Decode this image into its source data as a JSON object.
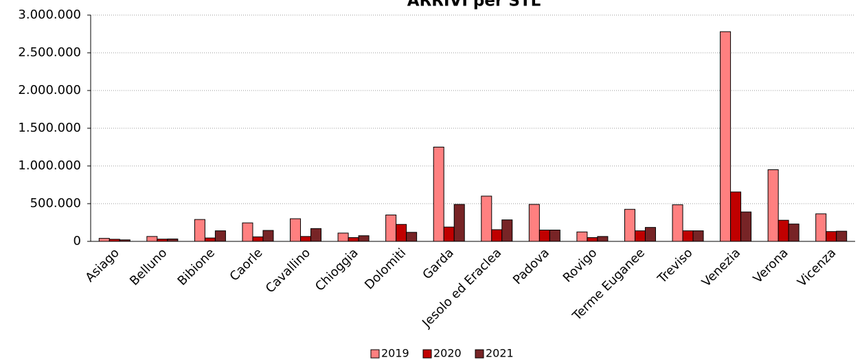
{
  "chart_data": {
    "type": "bar",
    "title": "ARRIVI per STL",
    "categories": [
      "Asiago",
      "Belluno",
      "Bibione",
      "Caorle",
      "Cavallino",
      "Chioggia",
      "Dolomiti",
      "Garda",
      "Jesolo ed Eraclea",
      "Padova",
      "Rovigo",
      "Terme Euganee",
      "Treviso",
      "Venezia",
      "Verona",
      "Vicenza"
    ],
    "series": [
      {
        "name": "2019",
        "color": "#ff8080",
        "values": [
          40000,
          65000,
          290000,
          245000,
          300000,
          110000,
          350000,
          1250000,
          600000,
          490000,
          125000,
          425000,
          485000,
          2780000,
          950000,
          365000
        ]
      },
      {
        "name": "2020",
        "color": "#c00000",
        "values": [
          28000,
          30000,
          45000,
          60000,
          65000,
          50000,
          225000,
          190000,
          155000,
          150000,
          50000,
          140000,
          140000,
          655000,
          280000,
          130000
        ]
      },
      {
        "name": "2021",
        "color": "#772426",
        "values": [
          20000,
          32000,
          140000,
          145000,
          170000,
          75000,
          120000,
          490000,
          285000,
          150000,
          65000,
          185000,
          140000,
          390000,
          230000,
          135000
        ]
      }
    ],
    "ylim": [
      0,
      3000000
    ],
    "yticks": [
      0,
      {
        "value": 500000,
        "label": "500.000"
      },
      {
        "value": 1000000,
        "label": "1.000.000"
      },
      {
        "value": 1500000,
        "label": "1.500.000"
      },
      {
        "value": 2000000,
        "label": "2.000.000"
      },
      {
        "value": 2500000,
        "label": "2.500.000"
      },
      {
        "value": 3000000,
        "label": "3.000.000"
      }
    ],
    "grid": true,
    "legend": "bottom"
  }
}
